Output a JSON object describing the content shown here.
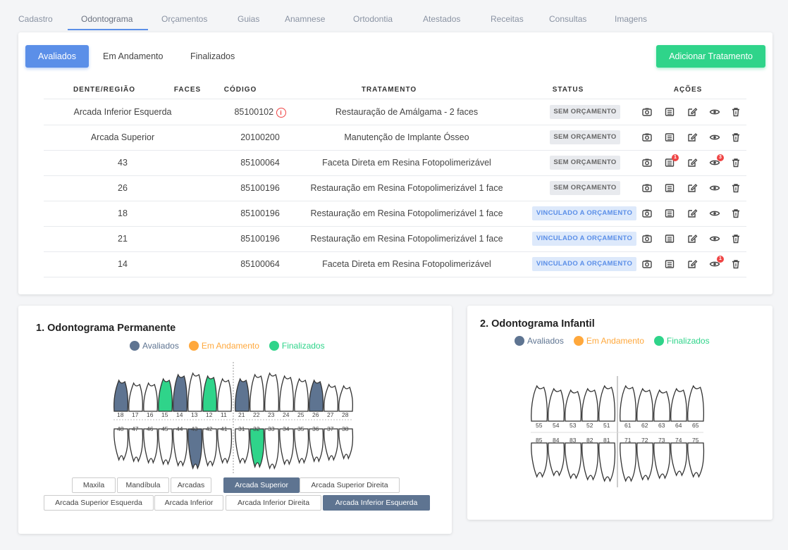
{
  "tabs": [
    "Cadastro",
    "Odontograma",
    "Orçamentos",
    "Guias",
    "Anamnese",
    "Ortodontia",
    "Atestados",
    "Receitas",
    "Consultas",
    "Imagens"
  ],
  "filters": [
    "Avaliados",
    "Em Andamento",
    "Finalizados"
  ],
  "add_button": "Adicionar Tratamento",
  "table": {
    "headers": [
      "DENTE/REGIÃO",
      "FACES",
      "CÓDIGO",
      "TRATAMENTO",
      "STATUS",
      "AÇÕES"
    ],
    "rows": [
      {
        "dente": "Arcada Inferior Esquerda",
        "codigo": "85100102",
        "tratamento": "Restauração de Amálgama - 2 faces",
        "status": "SEM ORÇAMENTO"
      },
      {
        "dente": "Arcada Superior",
        "codigo": "20100200",
        "tratamento": "Manutenção de Implante Ósseo",
        "status": "SEM ORÇAMENTO"
      },
      {
        "dente": "43",
        "codigo": "85100064",
        "tratamento": "Faceta Direta em Resina Fotopolimerizável",
        "status": "SEM ORÇAMENTO"
      },
      {
        "dente": "26",
        "codigo": "85100196",
        "tratamento": "Restauração em Resina Fotopolimerizável 1 face",
        "status": "SEM ORÇAMENTO"
      },
      {
        "dente": "18",
        "codigo": "85100196",
        "tratamento": "Restauração em Resina Fotopolimerizável 1 face",
        "status": "VINCULADO A ORÇAMENTO"
      },
      {
        "dente": "21",
        "codigo": "85100196",
        "tratamento": "Restauração em Resina Fotopolimerizável 1 face",
        "status": "VINCULADO A ORÇAMENTO"
      },
      {
        "dente": "14",
        "codigo": "85100064",
        "tratamento": "Faceta Direta em Resina Fotopolimerizável",
        "status": "VINCULADO A ORÇAMENTO"
      }
    ],
    "notif_counts": {
      "r2_list": "1",
      "r2_view": "3",
      "r6_view": "1"
    }
  },
  "odontograma_permanente": {
    "title": "1. Odontograma Permanente",
    "legend": [
      "Avaliados",
      "Em Andamento",
      "Finalizados"
    ],
    "upper_numbers": [
      "18",
      "17",
      "16",
      "15",
      "14",
      "13",
      "12",
      "11",
      "21",
      "22",
      "23",
      "24",
      "25",
      "26",
      "27",
      "28"
    ],
    "lower_numbers": [
      "48",
      "47",
      "46",
      "45",
      "44",
      "43",
      "42",
      "41",
      "31",
      "32",
      "33",
      "34",
      "35",
      "36",
      "37",
      "38"
    ],
    "buttons_row1": [
      "Maxila",
      "Mandíbula",
      "Arcadas",
      "Arcada Superior",
      "Arcada Superior Direita"
    ],
    "buttons_row2": [
      "Arcada Superior Esquerda",
      "Arcada Inferior",
      "Arcada Inferior Direita",
      "Arcada Inferior Esquerda"
    ]
  },
  "odontograma_infantil": {
    "title": "2. Odontograma Infantil",
    "legend": [
      "Avaliados",
      "Em Andamento",
      "Finalizados"
    ],
    "upper_numbers": [
      "55",
      "54",
      "53",
      "52",
      "51",
      "61",
      "62",
      "63",
      "64",
      "65"
    ],
    "lower_numbers": [
      "85",
      "84",
      "83",
      "82",
      "81",
      "71",
      "72",
      "73",
      "74",
      "75"
    ]
  },
  "colors": {
    "avaliados": "#5e7491",
    "andamento": "#ffa83c",
    "finalizados": "#2fd48a",
    "primary": "#5b8fe8"
  }
}
